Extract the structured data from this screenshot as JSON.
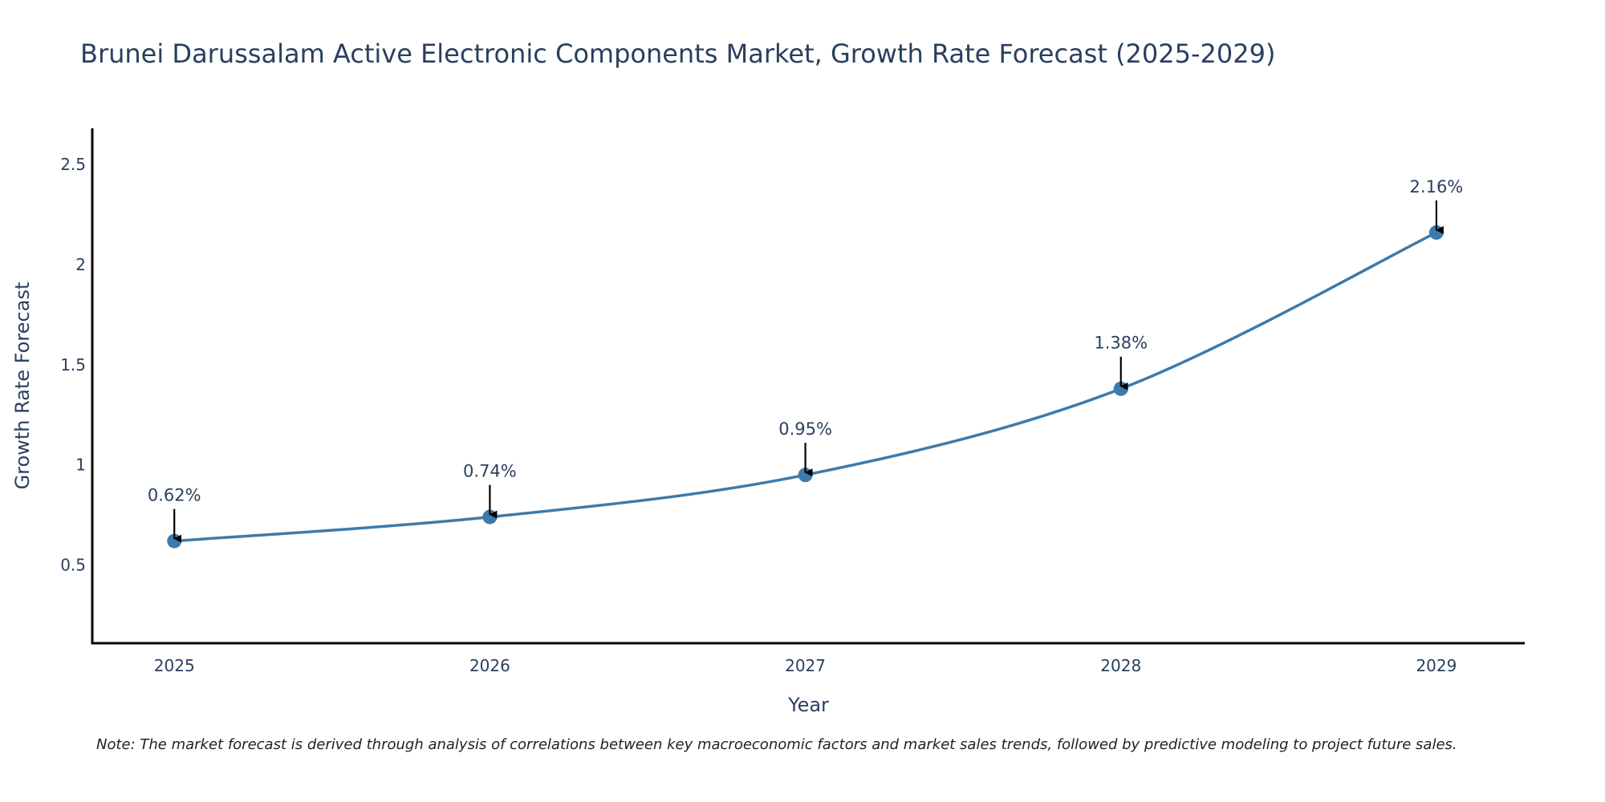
{
  "chart_data": {
    "type": "line",
    "title": "Brunei Darussalam Active Electronic Components Market, Growth Rate Forecast (2025-2029)",
    "xlabel": "Year",
    "ylabel": "Growth Rate Forecast",
    "x": [
      "2025",
      "2026",
      "2027",
      "2028",
      "2029"
    ],
    "series": [
      {
        "name": "Growth Rate Forecast",
        "values": [
          0.62,
          0.74,
          0.95,
          1.38,
          2.16
        ],
        "labels": [
          "0.62%",
          "0.74%",
          "0.95%",
          "1.38%",
          "2.16%"
        ],
        "color": "#3d7aaa"
      }
    ],
    "yticks": [
      0.5,
      1,
      1.5,
      2,
      2.5
    ],
    "ytick_labels": [
      "0.5",
      "1",
      "1.5",
      "2",
      "2.5"
    ],
    "ylim": [
      0.11,
      2.68
    ],
    "xlim": [
      2024.74,
      2029.28
    ],
    "grid": false,
    "legend": "none",
    "annotation_arrows": true,
    "line_shape": "spline",
    "axis_color": "#000000",
    "text_color": "#2a3f5f"
  },
  "note": "Note: The market forecast is derived through analysis of correlations between key macroeconomic factors and market sales trends, followed by predictive modeling to project future sales."
}
